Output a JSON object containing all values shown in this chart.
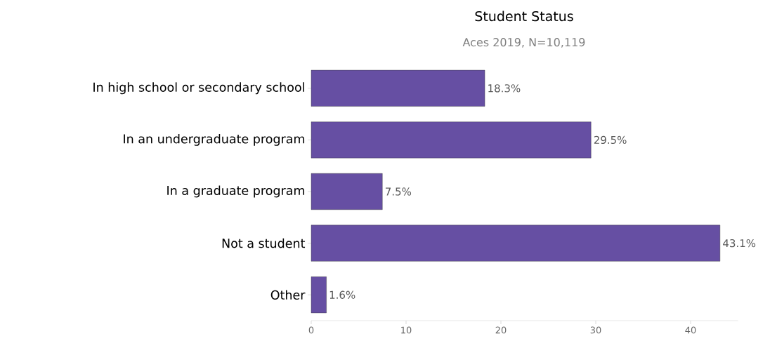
{
  "chart_data": {
    "type": "bar",
    "orientation": "horizontal",
    "title": "Student Status",
    "subtitle": "Aces 2019, N=10,119",
    "categories": [
      "In high school or secondary school",
      "In an undergraduate program",
      "In a graduate program",
      "Not a student",
      "Other"
    ],
    "values": [
      18.3,
      29.5,
      7.5,
      43.1,
      1.6
    ],
    "value_labels": [
      "18.3%",
      "29.5%",
      "7.5%",
      "43.1%",
      "1.6%"
    ],
    "color": "#664fa3",
    "xlim": [
      0,
      45
    ],
    "xticks": [
      0,
      10,
      20,
      30,
      40
    ],
    "grid": false
  }
}
